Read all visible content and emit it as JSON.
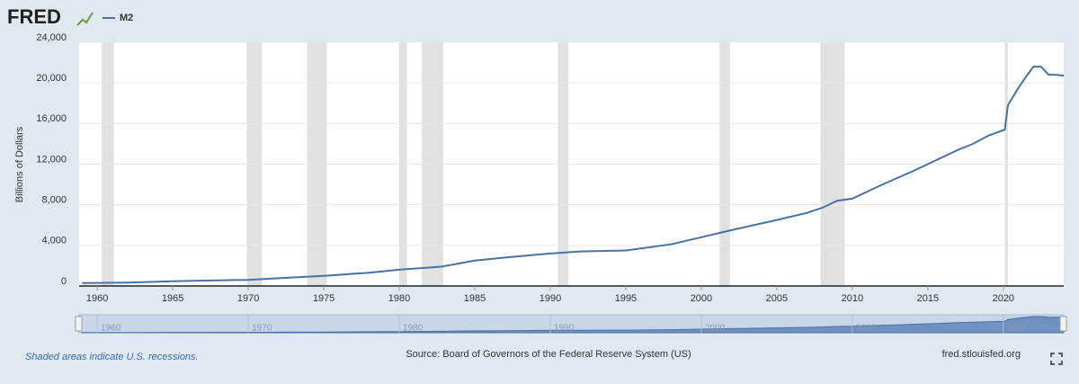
{
  "chart_data": {
    "type": "line",
    "logo": "FRED",
    "ylabel": "Billions of Dollars",
    "series": [
      {
        "name": "M2",
        "color": "#4572a7",
        "x": [
          1959,
          1960,
          1962,
          1965,
          1968,
          1970,
          1972,
          1975,
          1978,
          1980,
          1982.8,
          1985,
          1987,
          1990,
          1992,
          1995,
          1998,
          2000,
          2002,
          2005,
          2007,
          2008,
          2009,
          2010,
          2011,
          2012,
          2014,
          2015,
          2017,
          2018,
          2019,
          2020.1,
          2020.3,
          2021,
          2021.5,
          2022,
          2022.5,
          2023,
          2023.5,
          2024
        ],
        "values": [
          286,
          300,
          340,
          460,
          560,
          600,
          760,
          1000,
          1300,
          1600,
          1900,
          2500,
          2800,
          3200,
          3400,
          3500,
          4100,
          4800,
          5500,
          6500,
          7200,
          7700,
          8400,
          8600,
          9300,
          10000,
          11300,
          12000,
          13400,
          14000,
          14800,
          15400,
          17800,
          19500,
          20600,
          21600,
          21600,
          20800,
          20800,
          20700
        ]
      }
    ],
    "recessions": [
      [
        1960.3,
        1961.1
      ],
      [
        1969.9,
        1970.9
      ],
      [
        1973.9,
        1975.2
      ],
      [
        1980.0,
        1980.5
      ],
      [
        1981.5,
        1982.9
      ],
      [
        1990.5,
        1991.2
      ],
      [
        2001.2,
        2001.9
      ],
      [
        2007.9,
        2009.5
      ],
      [
        2020.1,
        2020.3
      ]
    ],
    "xlim": [
      1958.8,
      2024
    ],
    "ylim": [
      0,
      24000
    ],
    "xticks": [
      1960,
      1965,
      1970,
      1975,
      1980,
      1985,
      1990,
      1995,
      2000,
      2005,
      2010,
      2015,
      2020
    ],
    "yticks": [
      0,
      {
        "value": 4000,
        "label": "4,000"
      },
      {
        "value": 8000,
        "label": "8,000"
      },
      {
        "value": 12000,
        "label": "12,000"
      },
      {
        "value": 16000,
        "label": "16,000"
      },
      {
        "value": 20000,
        "label": "20,000"
      },
      {
        "value": 24000,
        "label": "24,000"
      }
    ],
    "navigator_ticks": [
      1960,
      1970,
      1980,
      1990,
      2000,
      2010,
      2020
    ],
    "note": "Shaded areas indicate U.S. recessions.",
    "source": "Source: Board of Governors of the Federal Reserve System (US)",
    "site": "fred.stlouisfed.org",
    "grid": true
  }
}
